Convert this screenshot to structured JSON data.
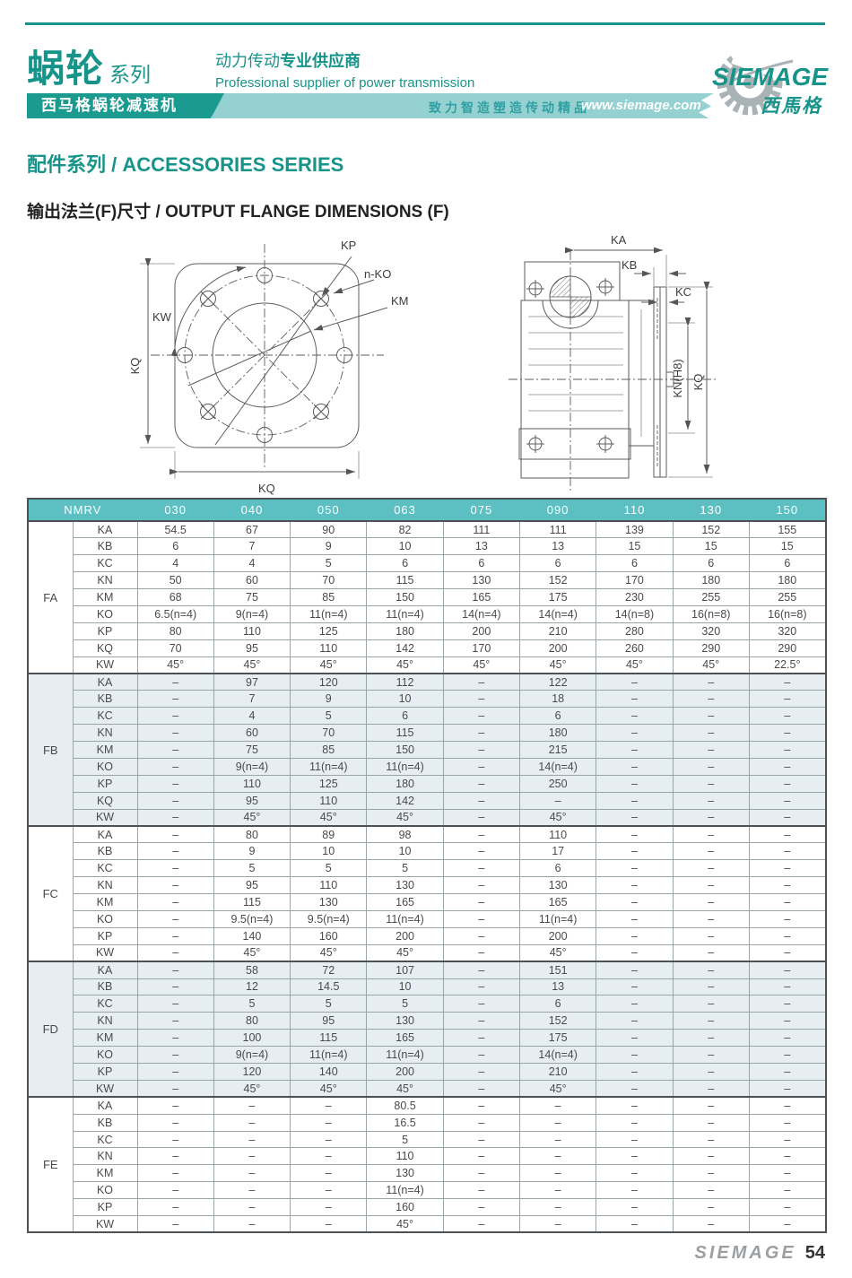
{
  "header": {
    "series_cn": "蜗轮",
    "series_suffix": "系列",
    "tagline_cn_light": "动力传动",
    "tagline_cn_bold": "专业供应商",
    "tagline_en": "Professional supplier of power transmission",
    "banner_left": "西马格蜗轮减速机",
    "banner_slogan": "致力智造塑造传动精品",
    "banner_url": "www.siemage.com",
    "logo_text": "SIEMAGE",
    "logo_cn": "西馬格",
    "accent_color": "#17948a",
    "strip_color": "#96d1d2",
    "dark_banner_color": "#1b9a90"
  },
  "section": {
    "title": "配件系列 / ACCESSORIES SERIES",
    "subtitle": "输出法兰(F)尺寸 / OUTPUT FLANGE DIMENSIONS (F)"
  },
  "drawings": {
    "front": {
      "kp": "KP",
      "nko": "n-KO",
      "km": "KM",
      "kw": "KW",
      "kq_left": "KQ",
      "kq_bottom": "KQ"
    },
    "side": {
      "ka": "KA",
      "kb": "KB",
      "kc": "KC",
      "kn": "KN(H8)",
      "kq": "KQ"
    }
  },
  "table": {
    "corner_label": "NMRV",
    "header_bg": "#5cbfc2",
    "shaded_row_bg": "#e6eef4",
    "sizes": [
      "030",
      "040",
      "050",
      "063",
      "075",
      "090",
      "110",
      "130",
      "150"
    ],
    "sections": [
      {
        "group": "FA",
        "shaded": false,
        "rows": [
          {
            "param": "KA",
            "values": [
              "54.5",
              "67",
              "90",
              "82",
              "111",
              "111",
              "139",
              "152",
              "155"
            ]
          },
          {
            "param": "KB",
            "values": [
              "6",
              "7",
              "9",
              "10",
              "13",
              "13",
              "15",
              "15",
              "15"
            ]
          },
          {
            "param": "KC",
            "values": [
              "4",
              "4",
              "5",
              "6",
              "6",
              "6",
              "6",
              "6",
              "6"
            ]
          },
          {
            "param": "KN",
            "values": [
              "50",
              "60",
              "70",
              "115",
              "130",
              "152",
              "170",
              "180",
              "180"
            ]
          },
          {
            "param": "KM",
            "values": [
              "68",
              "75",
              "85",
              "150",
              "165",
              "175",
              "230",
              "255",
              "255"
            ]
          },
          {
            "param": "KO",
            "values": [
              "6.5(n=4)",
              "9(n=4)",
              "11(n=4)",
              "11(n=4)",
              "14(n=4)",
              "14(n=4)",
              "14(n=8)",
              "16(n=8)",
              "16(n=8)"
            ]
          },
          {
            "param": "KP",
            "values": [
              "80",
              "110",
              "125",
              "180",
              "200",
              "210",
              "280",
              "320",
              "320"
            ]
          },
          {
            "param": "KQ",
            "values": [
              "70",
              "95",
              "110",
              "142",
              "170",
              "200",
              "260",
              "290",
              "290"
            ]
          },
          {
            "param": "KW",
            "values": [
              "45°",
              "45°",
              "45°",
              "45°",
              "45°",
              "45°",
              "45°",
              "45°",
              "22.5°"
            ]
          }
        ]
      },
      {
        "group": "FB",
        "shaded": true,
        "rows": [
          {
            "param": "KA",
            "values": [
              "–",
              "97",
              "120",
              "112",
              "–",
              "122",
              "–",
              "–",
              "–"
            ]
          },
          {
            "param": "KB",
            "values": [
              "–",
              "7",
              "9",
              "10",
              "–",
              "18",
              "–",
              "–",
              "–"
            ]
          },
          {
            "param": "KC",
            "values": [
              "–",
              "4",
              "5",
              "6",
              "–",
              "6",
              "–",
              "–",
              "–"
            ]
          },
          {
            "param": "KN",
            "values": [
              "–",
              "60",
              "70",
              "115",
              "–",
              "180",
              "–",
              "–",
              "–"
            ]
          },
          {
            "param": "KM",
            "values": [
              "–",
              "75",
              "85",
              "150",
              "–",
              "215",
              "–",
              "–",
              "–"
            ]
          },
          {
            "param": "KO",
            "values": [
              "–",
              "9(n=4)",
              "11(n=4)",
              "11(n=4)",
              "–",
              "14(n=4)",
              "–",
              "–",
              "–"
            ]
          },
          {
            "param": "KP",
            "values": [
              "–",
              "110",
              "125",
              "180",
              "–",
              "250",
              "–",
              "–",
              "–"
            ]
          },
          {
            "param": "KQ",
            "values": [
              "–",
              "95",
              "110",
              "142",
              "–",
              "–",
              "–",
              "–",
              "–"
            ]
          },
          {
            "param": "KW",
            "values": [
              "–",
              "45°",
              "45°",
              "45°",
              "–",
              "45°",
              "–",
              "–",
              "–"
            ]
          }
        ]
      },
      {
        "group": "FC",
        "shaded": false,
        "rows": [
          {
            "param": "KA",
            "values": [
              "–",
              "80",
              "89",
              "98",
              "–",
              "110",
              "–",
              "–",
              "–"
            ]
          },
          {
            "param": "KB",
            "values": [
              "–",
              "9",
              "10",
              "10",
              "–",
              "17",
              "–",
              "–",
              "–"
            ]
          },
          {
            "param": "KC",
            "values": [
              "–",
              "5",
              "5",
              "5",
              "–",
              "6",
              "–",
              "–",
              "–"
            ]
          },
          {
            "param": "KN",
            "values": [
              "–",
              "95",
              "110",
              "130",
              "–",
              "130",
              "–",
              "–",
              "–"
            ]
          },
          {
            "param": "KM",
            "values": [
              "–",
              "115",
              "130",
              "165",
              "–",
              "165",
              "–",
              "–",
              "–"
            ]
          },
          {
            "param": "KO",
            "values": [
              "–",
              "9.5(n=4)",
              "9.5(n=4)",
              "11(n=4)",
              "–",
              "11(n=4)",
              "–",
              "–",
              "–"
            ]
          },
          {
            "param": "KP",
            "values": [
              "–",
              "140",
              "160",
              "200",
              "–",
              "200",
              "–",
              "–",
              "–"
            ]
          },
          {
            "param": "KW",
            "values": [
              "–",
              "45°",
              "45°",
              "45°",
              "–",
              "45°",
              "–",
              "–",
              "–"
            ]
          }
        ]
      },
      {
        "group": "FD",
        "shaded": true,
        "rows": [
          {
            "param": "KA",
            "values": [
              "–",
              "58",
              "72",
              "107",
              "–",
              "151",
              "–",
              "–",
              "–"
            ]
          },
          {
            "param": "KB",
            "values": [
              "–",
              "12",
              "14.5",
              "10",
              "–",
              "13",
              "–",
              "–",
              "–"
            ]
          },
          {
            "param": "KC",
            "values": [
              "–",
              "5",
              "5",
              "5",
              "–",
              "6",
              "–",
              "–",
              "–"
            ]
          },
          {
            "param": "KN",
            "values": [
              "–",
              "80",
              "95",
              "130",
              "–",
              "152",
              "–",
              "–",
              "–"
            ]
          },
          {
            "param": "KM",
            "values": [
              "–",
              "100",
              "115",
              "165",
              "–",
              "175",
              "–",
              "–",
              "–"
            ]
          },
          {
            "param": "KO",
            "values": [
              "–",
              "9(n=4)",
              "11(n=4)",
              "11(n=4)",
              "–",
              "14(n=4)",
              "–",
              "–",
              "–"
            ]
          },
          {
            "param": "KP",
            "values": [
              "–",
              "120",
              "140",
              "200",
              "–",
              "210",
              "–",
              "–",
              "–"
            ]
          },
          {
            "param": "KW",
            "values": [
              "–",
              "45°",
              "45°",
              "45°",
              "–",
              "45°",
              "–",
              "–",
              "–"
            ]
          }
        ]
      },
      {
        "group": "FE",
        "shaded": false,
        "rows": [
          {
            "param": "KA",
            "values": [
              "–",
              "–",
              "–",
              "80.5",
              "–",
              "–",
              "–",
              "–",
              "–"
            ]
          },
          {
            "param": "KB",
            "values": [
              "–",
              "–",
              "–",
              "16.5",
              "–",
              "–",
              "–",
              "–",
              "–"
            ]
          },
          {
            "param": "KC",
            "values": [
              "–",
              "–",
              "–",
              "5",
              "–",
              "–",
              "–",
              "–",
              "–"
            ]
          },
          {
            "param": "KN",
            "values": [
              "–",
              "–",
              "–",
              "110",
              "–",
              "–",
              "–",
              "–",
              "–"
            ]
          },
          {
            "param": "KM",
            "values": [
              "–",
              "–",
              "–",
              "130",
              "–",
              "–",
              "–",
              "–",
              "–"
            ]
          },
          {
            "param": "KO",
            "values": [
              "–",
              "–",
              "–",
              "11(n=4)",
              "–",
              "–",
              "–",
              "–",
              "–"
            ]
          },
          {
            "param": "KP",
            "values": [
              "–",
              "–",
              "–",
              "160",
              "–",
              "–",
              "–",
              "–",
              "–"
            ]
          },
          {
            "param": "KW",
            "values": [
              "–",
              "–",
              "–",
              "45°",
              "–",
              "–",
              "–",
              "–",
              "–"
            ]
          }
        ]
      }
    ]
  },
  "footer": {
    "brand": "SIEMAGE",
    "page": "54"
  }
}
